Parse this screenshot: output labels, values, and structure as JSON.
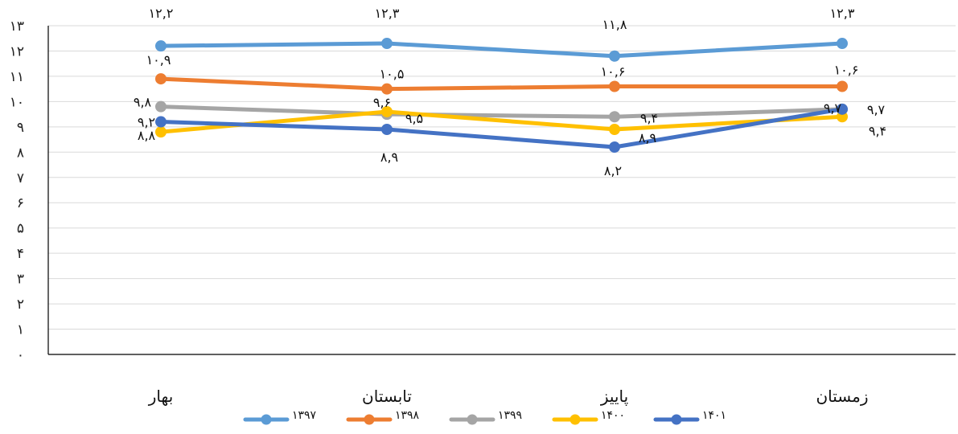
{
  "chart_data": {
    "type": "line",
    "categories": [
      "بهار",
      "تابستان",
      "پاییز",
      "زمستان"
    ],
    "y_ticks": [
      "۰",
      "۱",
      "۲",
      "۳",
      "۴",
      "۵",
      "۶",
      "۷",
      "۸",
      "۹",
      "۱۰",
      "۱۱",
      "۱۲",
      "۱۳"
    ],
    "ylim": [
      0,
      13
    ],
    "grid": true,
    "legend_position": "bottom",
    "series": [
      {
        "name": "۱۳۹۷",
        "color": "#5B9BD5",
        "values": [
          12.2,
          12.3,
          11.8,
          12.3
        ],
        "labels": [
          "۱۲,۲",
          "۱۲,۳",
          "۱۱,۸",
          "۱۲,۳"
        ]
      },
      {
        "name": "۱۳۹۸",
        "color": "#ED7D31",
        "values": [
          10.9,
          10.5,
          10.6,
          10.6
        ],
        "labels": [
          "۱۰,۹",
          "۱۰,۵",
          "۱۰,۶",
          "۱۰,۶"
        ]
      },
      {
        "name": "۱۳۹۹",
        "color": "#A5A5A5",
        "values": [
          9.8,
          9.5,
          9.4,
          9.7
        ],
        "labels": [
          "۹,۸",
          "۹,۵",
          "۹,۴",
          "۹,۷"
        ]
      },
      {
        "name": "۱۴۰۰",
        "color": "#FFC000",
        "values": [
          8.8,
          9.6,
          8.9,
          9.4
        ],
        "labels": [
          "۸,۸",
          "۹,۶",
          "۸,۹",
          "۹,۴"
        ]
      },
      {
        "name": "۱۴۰۱",
        "color": "#4472C4",
        "values": [
          9.2,
          8.9,
          8.2,
          9.7
        ],
        "labels": [
          "۹,۲",
          "۸,۹",
          "۸,۲",
          "۹,۷"
        ]
      }
    ]
  }
}
